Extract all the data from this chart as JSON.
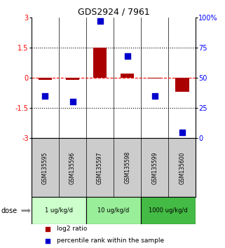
{
  "title": "GDS2924 / 7961",
  "samples": [
    "GSM135595",
    "GSM135596",
    "GSM135597",
    "GSM135598",
    "GSM135599",
    "GSM135600"
  ],
  "log2_ratio": [
    -0.1,
    -0.1,
    1.5,
    0.2,
    -0.05,
    -0.7
  ],
  "percentile_rank": [
    35,
    30,
    97,
    68,
    35,
    5
  ],
  "doses": [
    {
      "label": "1 ug/kg/d",
      "samples": [
        0,
        1
      ],
      "color": "#ccffcc"
    },
    {
      "label": "10 ug/kg/d",
      "samples": [
        2,
        3
      ],
      "color": "#99ee99"
    },
    {
      "label": "1000 ug/kg/d",
      "samples": [
        4,
        5
      ],
      "color": "#44bb44"
    }
  ],
  "ylim_left": [
    -3,
    3
  ],
  "ylim_right": [
    0,
    100
  ],
  "yticks_left": [
    -3,
    -1.5,
    0,
    1.5,
    3
  ],
  "yticks_right": [
    0,
    25,
    50,
    75,
    100
  ],
  "ytick_labels_left": [
    "-3",
    "-1.5",
    "0",
    "1.5",
    "3"
  ],
  "ytick_labels_right": [
    "0",
    "25",
    "50",
    "75",
    "100%"
  ],
  "hlines_dotted": [
    -1.5,
    1.5
  ],
  "bar_color": "#aa0000",
  "dot_color": "#0000cc",
  "bar_width": 0.5,
  "dot_size": 28,
  "sample_bg_color": "#cccccc",
  "legend_bar_label": "log2 ratio",
  "legend_dot_label": "percentile rank within the sample",
  "dose_label": "dose"
}
